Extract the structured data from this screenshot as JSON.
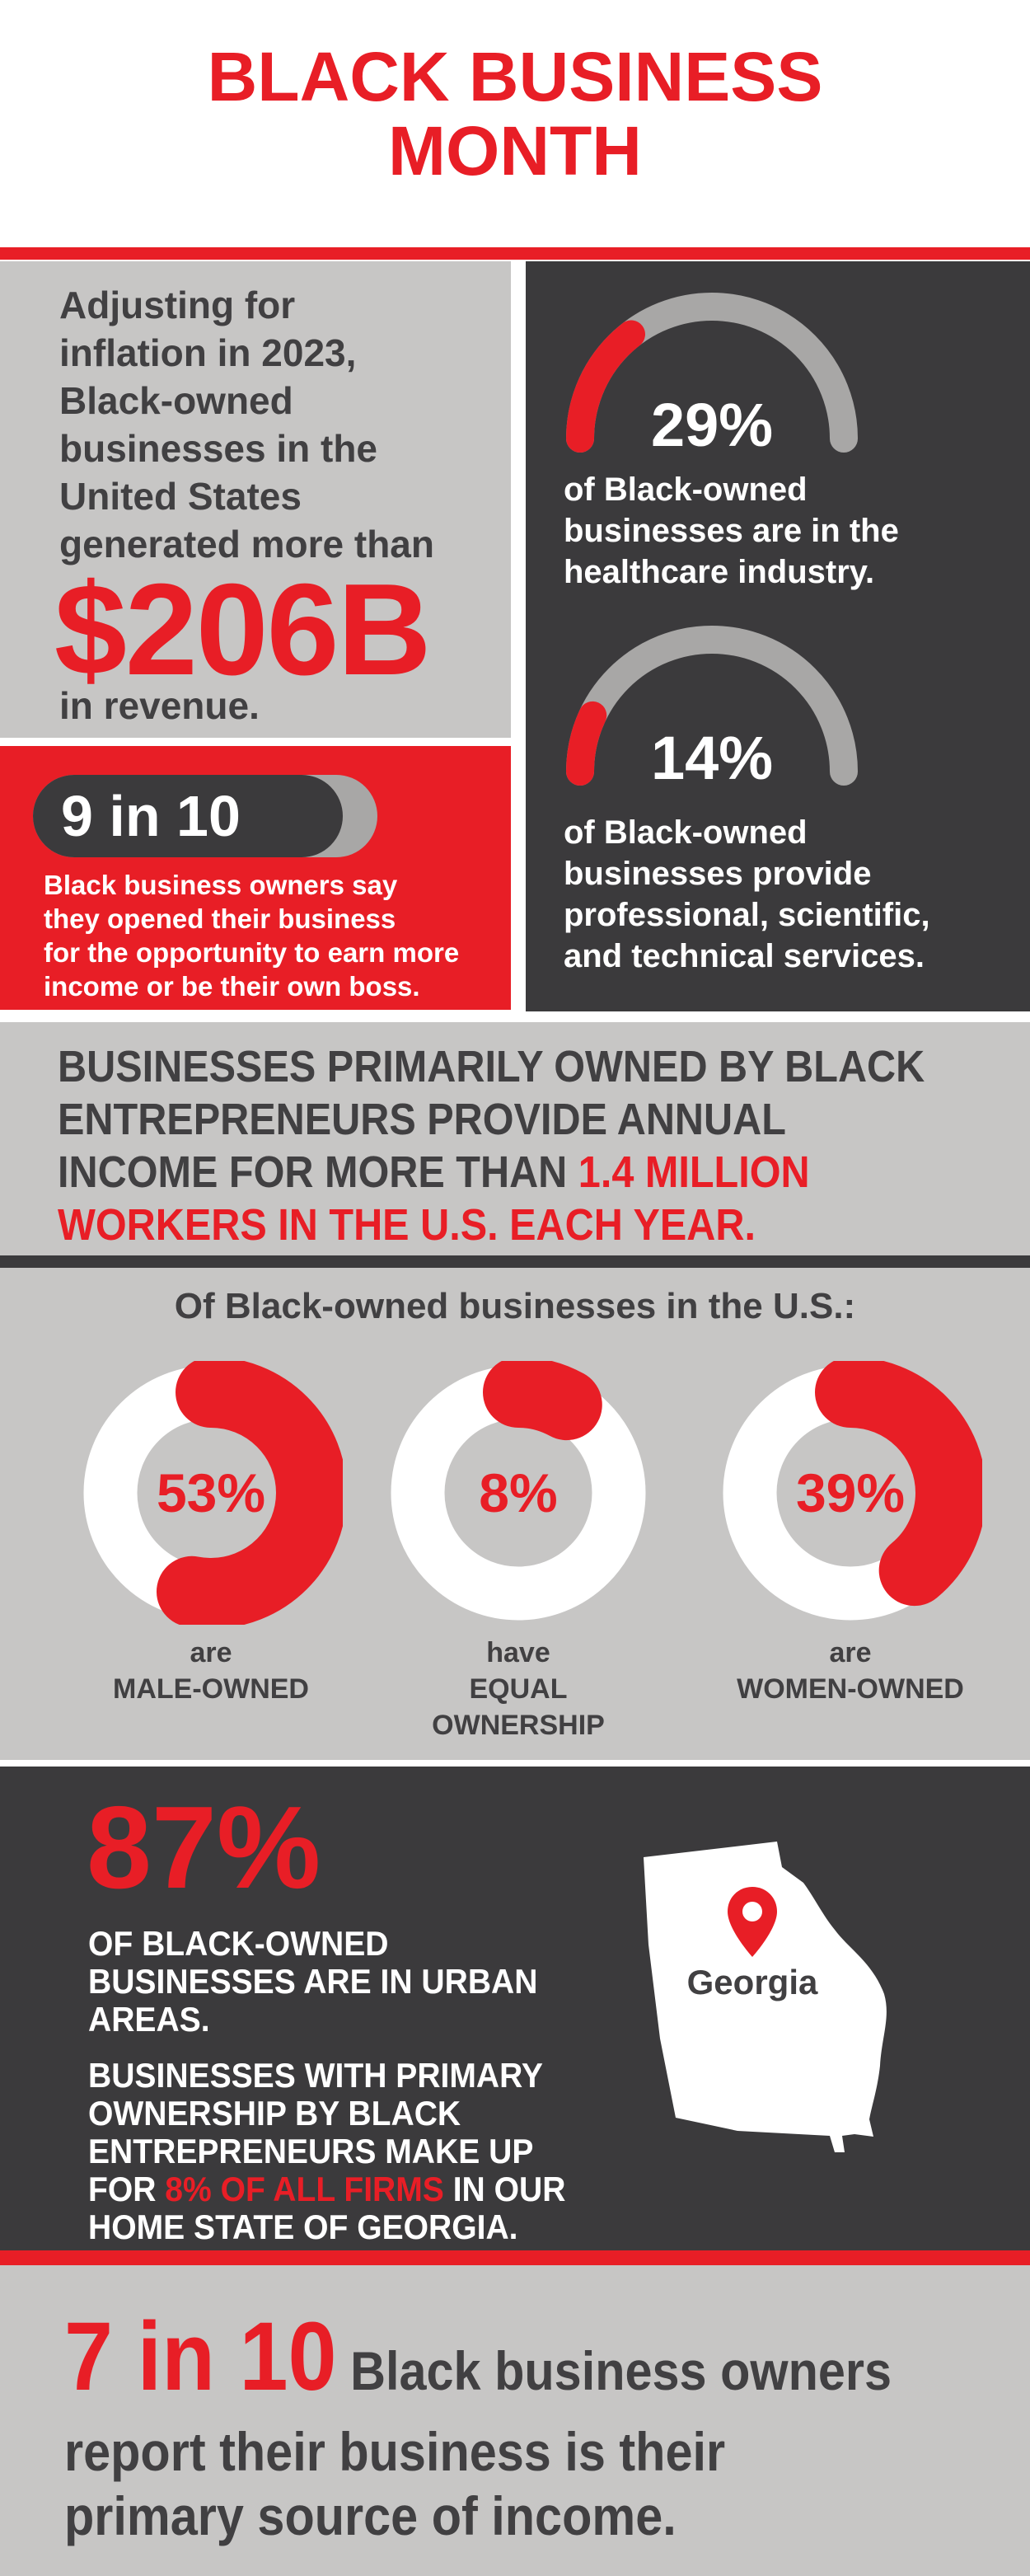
{
  "title": {
    "line1": "BLACK BUSINESS",
    "line2": "MONTH"
  },
  "colors": {
    "red": "#e81e26",
    "dark_gray": "#3b3a3c",
    "light_gray": "#c7c6c5",
    "mid_gray": "#a8a7a6",
    "text_dark": "#414042",
    "white": "#ffffff"
  },
  "revenue_card": {
    "lines": [
      "Adjusting for",
      "inflation in 2023,",
      "Black-owned",
      "businesses in the",
      "United States",
      "generated more than"
    ],
    "amount": "$206B",
    "tail": "in revenue."
  },
  "gauges": [
    {
      "pct": 29,
      "pct_label": "29%",
      "lines": [
        "of Black-owned",
        "businesses are in the",
        "healthcare industry."
      ]
    },
    {
      "pct": 14,
      "pct_label": "14%",
      "lines": [
        "of Black-owned",
        "businesses provide",
        "professional, scientific,",
        "and technical services."
      ]
    }
  ],
  "stats_pill": {
    "pct": 90,
    "value_label": "9 in 10",
    "caption_lines": [
      "Black business owners say",
      "they opened their business",
      "for the opportunity to earn more",
      "income or be their own boss."
    ]
  },
  "band": {
    "line1": "BUSINESSES PRIMARILY OWNED BY BLACK",
    "line2": "ENTREPRENEURS PROVIDE ANNUAL",
    "line3_dark": "INCOME FOR MORE THAN ",
    "line3_red": "1.4 MILLION",
    "line4_red": "WORKERS IN THE U.S. EACH YEAR."
  },
  "donuts": {
    "heading": "Of Black-owned businesses in the U.S.:",
    "items": [
      {
        "pct": 53,
        "pct_label": "53%",
        "label_lines": [
          "are",
          "MALE-OWNED",
          ""
        ]
      },
      {
        "pct": 8,
        "pct_label": "8%",
        "label_lines": [
          "have",
          "EQUAL",
          "OWNERSHIP"
        ]
      },
      {
        "pct": 39,
        "pct_label": "39%",
        "label_lines": [
          "are",
          "WOMEN-OWNED",
          ""
        ]
      }
    ]
  },
  "georgia": {
    "big_pct": "87%",
    "para1_lines": [
      "OF BLACK-OWNED",
      "BUSINESSES ARE IN URBAN",
      "AREAS."
    ],
    "para2_line1": "BUSINESSES WITH PRIMARY",
    "para2_line2": "OWNERSHIP BY BLACK",
    "para2_line3": "ENTREPRENEURS MAKE UP",
    "para2_line4_pre": "FOR ",
    "para2_line4_red": "8% OF ALL FIRMS",
    "para2_line4_post": " IN OUR",
    "para2_line5": "HOME STATE OF GEORGIA.",
    "map_label": "Georgia"
  },
  "bottom": {
    "lead": "7 in 10",
    "line1_rest": " Black business owners",
    "line2": "report their business is their",
    "line3": "primary source of income."
  },
  "chart_data": [
    {
      "type": "pie",
      "subtype": "gauge-semicircle",
      "value": 29,
      "max": 100,
      "title": "29% of Black-owned businesses are in the healthcare industry."
    },
    {
      "type": "pie",
      "subtype": "gauge-semicircle",
      "value": 14,
      "max": 100,
      "title": "14% of Black-owned businesses provide professional, scientific, and technical services."
    },
    {
      "type": "bar",
      "subtype": "progress-pill",
      "value": 9,
      "max": 10,
      "title": "9 in 10 Black business owners say they opened their business for the opportunity to earn more income or be their own boss."
    },
    {
      "type": "pie",
      "subtype": "donut",
      "value": 53,
      "max": 100,
      "title": "53% are male-owned"
    },
    {
      "type": "pie",
      "subtype": "donut",
      "value": 8,
      "max": 100,
      "title": "8% have equal ownership"
    },
    {
      "type": "pie",
      "subtype": "donut",
      "value": 39,
      "max": 100,
      "title": "39% are women-owned"
    }
  ]
}
